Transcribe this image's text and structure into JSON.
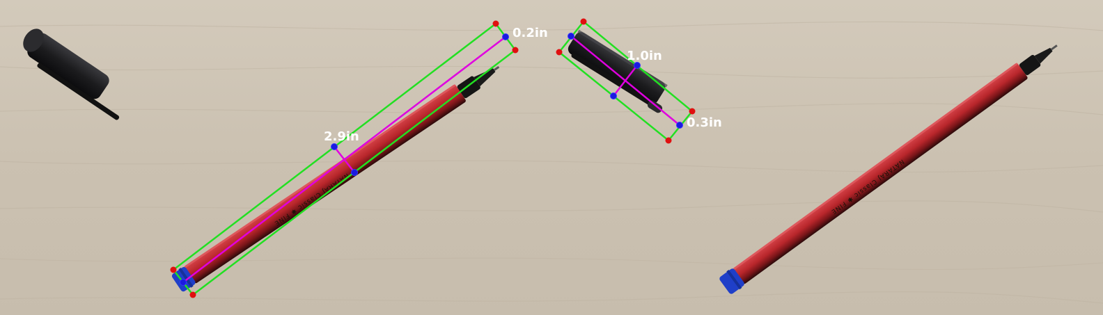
{
  "measurements": {
    "pen_width_label": "0.2in",
    "pen_length_label": "2.9in",
    "cap_length_label": "1.0in",
    "cap_width_label": "0.3in"
  },
  "pen_text": {
    "left_pen_brand": "NATARAJ Classic ✱ FINE",
    "right_pen_brand": "NATARAJ Classic ✱ FINE"
  },
  "colors": {
    "box_outline": "#22e022",
    "midline": "#e000e0",
    "midpoint_dot": "#1a1ae0",
    "corner_dot": "#e01010",
    "label_text": "#ffffff",
    "table_surface": "#cdc3b4",
    "pen_body": "#b8262b",
    "pen_cap": "#1c1c1e",
    "pen_end_cap": "#1f3fc8"
  }
}
